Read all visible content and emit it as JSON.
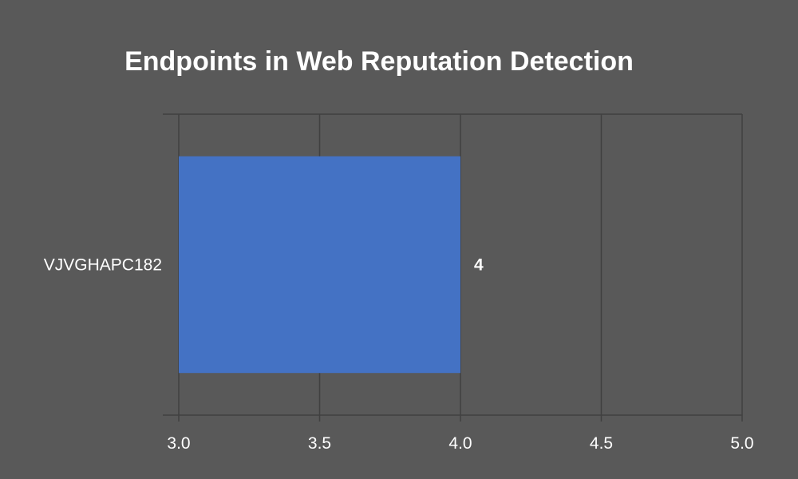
{
  "chart_data": {
    "type": "bar",
    "orientation": "horizontal",
    "title": "Endpoints in Web Reputation Detection",
    "xlabel": "",
    "ylabel": "",
    "categories": [
      "VJVGHAPC182"
    ],
    "values": [
      4
    ],
    "data_labels": [
      "4"
    ],
    "xlim": [
      3.0,
      5.0
    ],
    "x_ticks": [
      "3.0",
      "3.5",
      "4.0",
      "4.5",
      "5.0"
    ],
    "grid": true,
    "legend": "none",
    "colors": {
      "background": "#595959",
      "bar": "#4472c4",
      "grid": "#404040",
      "text": "#ffffff"
    }
  }
}
